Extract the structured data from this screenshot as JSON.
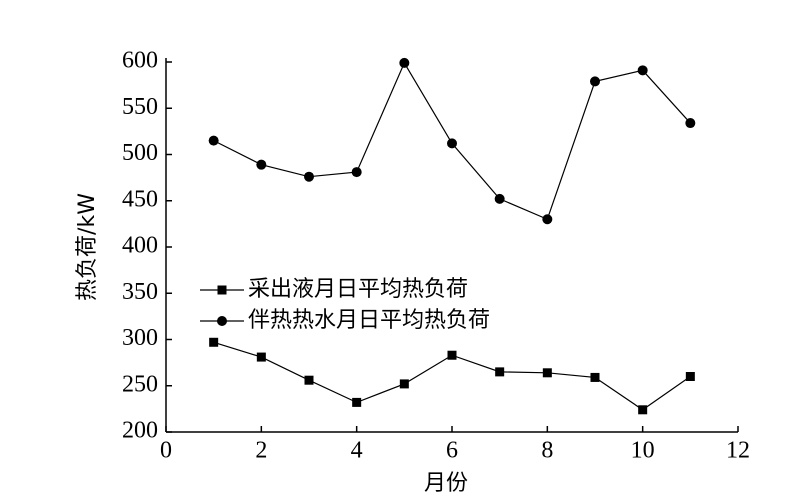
{
  "chart_data": {
    "type": "line",
    "xlabel": "月份",
    "ylabel": "热负荷/kW",
    "x": [
      1,
      2,
      3,
      4,
      5,
      6,
      7,
      8,
      9,
      10,
      11
    ],
    "series": [
      {
        "name": "采出液月日平均热负荷",
        "color": "#000000",
        "marker": "square",
        "values": [
          297,
          281,
          256,
          232,
          252,
          283,
          265,
          264,
          259,
          224,
          260
        ]
      },
      {
        "name": "伴热热水月日平均热负荷",
        "color": "#000000",
        "marker": "circle",
        "values": [
          515,
          489,
          476,
          481,
          599,
          512,
          452,
          430,
          579,
          591,
          534
        ]
      }
    ],
    "xlim": [
      0,
      12
    ],
    "xticks": [
      0,
      2,
      4,
      6,
      8,
      10,
      12
    ],
    "ylim": [
      200,
      600
    ],
    "yticks": [
      200,
      250,
      300,
      350,
      400,
      450,
      500,
      550,
      600
    ],
    "grid": false
  }
}
